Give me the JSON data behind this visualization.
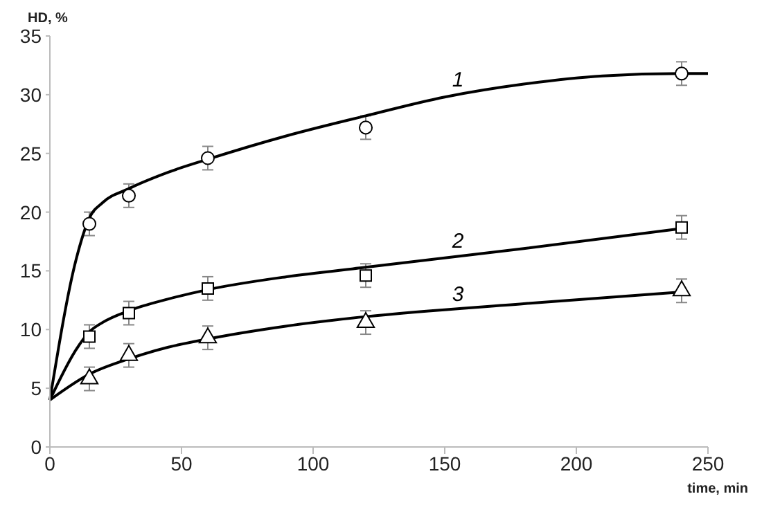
{
  "chart_data": {
    "type": "scatter",
    "xlabel": "time, min",
    "ylabel": "HD, %",
    "xlim": [
      0,
      250
    ],
    "xticks": [
      0,
      50,
      100,
      150,
      200,
      250
    ],
    "ylim": [
      0,
      35
    ],
    "yticks": [
      0,
      5,
      10,
      15,
      20,
      25,
      30,
      35
    ],
    "grid": false,
    "legend": false,
    "series": [
      {
        "marker": "circle",
        "color": "#000000",
        "x": [
          15,
          30,
          60,
          120,
          240
        ],
        "values": [
          19,
          21.4,
          24.6,
          27.2,
          31.8
        ],
        "errors": [
          1,
          1,
          1,
          1,
          1
        ]
      },
      {
        "marker": "square",
        "color": "#000000",
        "x": [
          15,
          30,
          60,
          120,
          240
        ],
        "values": [
          9.4,
          11.4,
          13.5,
          14.6,
          18.7
        ],
        "errors": [
          1,
          1,
          1,
          1,
          1
        ]
      },
      {
        "marker": "triangle",
        "color": "#000000",
        "x": [
          15,
          30,
          60,
          120,
          240
        ],
        "values": [
          5.8,
          7.8,
          9.3,
          10.6,
          13.3
        ],
        "errors": [
          1,
          1,
          1,
          1,
          1
        ]
      },
      {
        "type": "line",
        "marker": "none",
        "color": "#000000",
        "x": [
          0,
          10,
          15,
          20,
          30,
          45,
          60,
          90,
          120,
          150,
          180,
          210,
          240,
          250
        ],
        "values": [
          4,
          16,
          19.5,
          20.8,
          22,
          23.4,
          24.5,
          26.5,
          28.2,
          29.8,
          30.9,
          31.6,
          31.8,
          31.8
        ]
      },
      {
        "type": "line",
        "marker": "none",
        "color": "#000000",
        "x": [
          0,
          10,
          15,
          20,
          30,
          45,
          60,
          90,
          120,
          180,
          240
        ],
        "values": [
          4,
          8.3,
          9.8,
          10.6,
          11.6,
          12.6,
          13.4,
          14.5,
          15.3,
          16.9,
          18.6
        ]
      },
      {
        "type": "line",
        "marker": "none",
        "color": "#000000",
        "x": [
          0,
          15,
          30,
          45,
          60,
          90,
          120,
          180,
          240
        ],
        "values": [
          4,
          6.2,
          7.5,
          8.5,
          9.2,
          10.3,
          11.1,
          12.2,
          13.2
        ]
      }
    ],
    "annotations": [
      "1",
      "2",
      "3"
    ]
  }
}
